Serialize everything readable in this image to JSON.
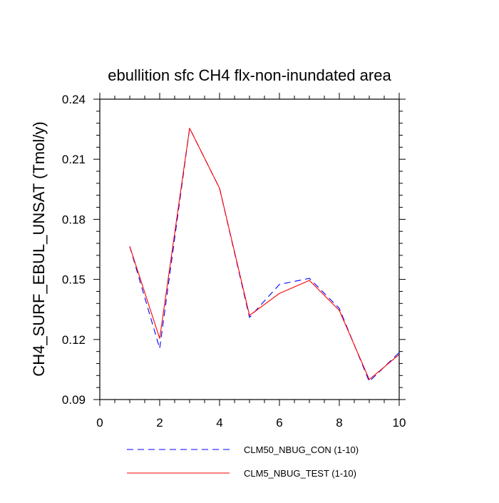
{
  "chart_data": {
    "type": "line",
    "title": "ebullition sfc CH4 flx-non-inundated area",
    "xlabel": "",
    "ylabel": "CH4_SURF_EBUL_UNSAT  (Tmol/y)",
    "xlim": [
      0,
      10
    ],
    "ylim": [
      0.09,
      0.24
    ],
    "xticks": [
      0,
      2,
      4,
      6,
      8,
      10
    ],
    "xtick_labels": [
      "0",
      "2",
      "4",
      "6",
      "8",
      "10"
    ],
    "yticks": [
      0.09,
      0.12,
      0.15,
      0.18,
      0.21,
      0.24
    ],
    "ytick_labels": [
      "0.09",
      "0.12",
      "0.15",
      "0.18",
      "0.21",
      "0.24"
    ],
    "grid": false,
    "legend_position": "bottom",
    "x": [
      1,
      2,
      3,
      4,
      5,
      6,
      7,
      8,
      9,
      10
    ],
    "series": [
      {
        "name": "CLM50_NBUG_CON (1-10)",
        "color": "#0000ff",
        "style": "dashed",
        "values": [
          0.1665,
          0.1155,
          0.2255,
          0.1955,
          0.131,
          0.1475,
          0.1505,
          0.1355,
          0.099,
          0.1135
        ]
      },
      {
        "name": "CLM5_NBUG_TEST (1-10)",
        "color": "#ff0000",
        "style": "solid",
        "values": [
          0.1665,
          0.1205,
          0.2255,
          0.1955,
          0.132,
          0.143,
          0.1495,
          0.1345,
          0.1,
          0.1125
        ]
      }
    ]
  }
}
